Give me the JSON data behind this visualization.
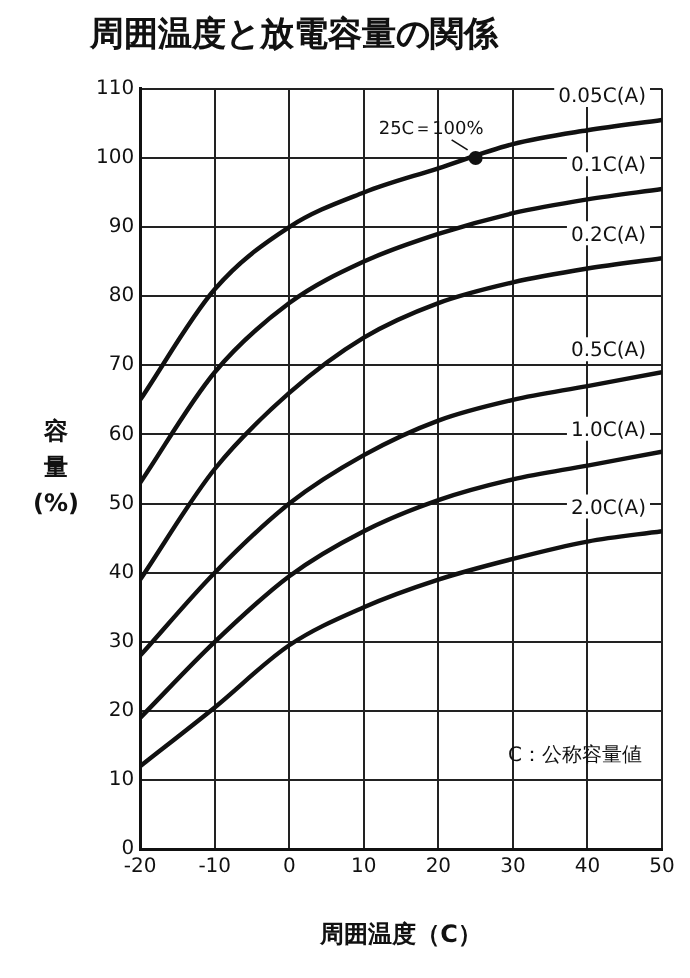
{
  "chart_data": {
    "type": "line",
    "title": "周囲温度と放電容量の関係",
    "xlabel": "周囲温度（C）",
    "ylabel": "容量(%)",
    "x": [
      -20,
      -10,
      0,
      10,
      20,
      30,
      40,
      50
    ],
    "series": [
      {
        "name": "0.05C(A)",
        "color": "#111111",
        "values": [
          65,
          81,
          90,
          95,
          98.5,
          102,
          104,
          105.5
        ]
      },
      {
        "name": "0.1C(A)",
        "color": "#111111",
        "values": [
          53,
          69,
          79,
          85,
          89,
          92,
          94,
          95.5
        ]
      },
      {
        "name": "0.2C(A)",
        "color": "#111111",
        "values": [
          39,
          55,
          66,
          74,
          79,
          82,
          84,
          85.5
        ]
      },
      {
        "name": "0.5C(A)",
        "color": "#111111",
        "values": [
          28,
          40,
          50,
          57,
          62,
          65,
          67,
          69
        ]
      },
      {
        "name": "1.0C(A)",
        "color": "#111111",
        "values": [
          19,
          30,
          39.5,
          46,
          50.5,
          53.5,
          55.5,
          57.5
        ]
      },
      {
        "name": "2.0C(A)",
        "color": "#111111",
        "values": [
          12,
          20.5,
          29.5,
          35,
          39,
          42,
          44.5,
          46
        ]
      }
    ],
    "annotations": [
      {
        "text": "25C＝100%",
        "x": 25,
        "y": 100
      },
      "C：公称容量値"
    ],
    "xlim": [
      -20,
      50
    ],
    "xticks": [
      -20,
      -10,
      0,
      10,
      20,
      30,
      40,
      50
    ],
    "ylim": [
      0,
      110
    ],
    "yticks": [
      0,
      10,
      20,
      30,
      40,
      50,
      60,
      70,
      80,
      90,
      100,
      110
    ],
    "grid": true,
    "legend": false,
    "marker": "none",
    "line_style": "solid"
  }
}
